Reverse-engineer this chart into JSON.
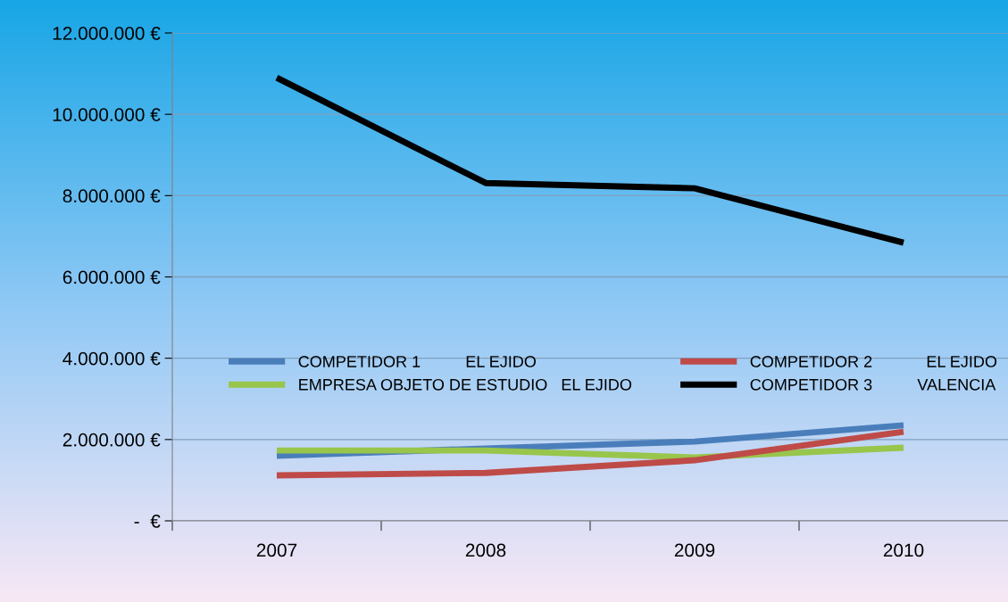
{
  "chart_data": {
    "type": "line",
    "categories": [
      "2007",
      "2008",
      "2009",
      "2010"
    ],
    "series": [
      {
        "name": "COMPETIDOR 1          EL EJIDO",
        "color": "#4a7ebb",
        "values": [
          1600000,
          1780000,
          1950000,
          2350000
        ]
      },
      {
        "name": "EMPRESA OBJETO DE ESTUDIO   EL EJIDO",
        "color": "#98c54b",
        "values": [
          1730000,
          1730000,
          1560000,
          1800000
        ]
      },
      {
        "name": "COMPETIDOR 2            EL EJIDO",
        "color": "#be4b48",
        "values": [
          1120000,
          1180000,
          1490000,
          2190000
        ]
      },
      {
        "name": "COMPETIDOR 3          VALENCIA",
        "color": "#000000",
        "values": [
          10900000,
          8310000,
          8180000,
          6840000
        ]
      }
    ],
    "ylim": [
      0,
      12000000
    ],
    "yticks": [
      {
        "value": 0,
        "label": "-  €"
      },
      {
        "value": 2000000,
        "label": "2.000.000 €"
      },
      {
        "value": 4000000,
        "label": "4.000.000 €"
      },
      {
        "value": 6000000,
        "label": "6.000.000 €"
      },
      {
        "value": 8000000,
        "label": "8.000.000 €"
      },
      {
        "value": 10000000,
        "label": "10.000.000 €"
      },
      {
        "value": 12000000,
        "label": "12.000.000 €"
      }
    ],
    "grid": "y",
    "legend": "center left",
    "marker": "none",
    "line_style": "solid"
  }
}
